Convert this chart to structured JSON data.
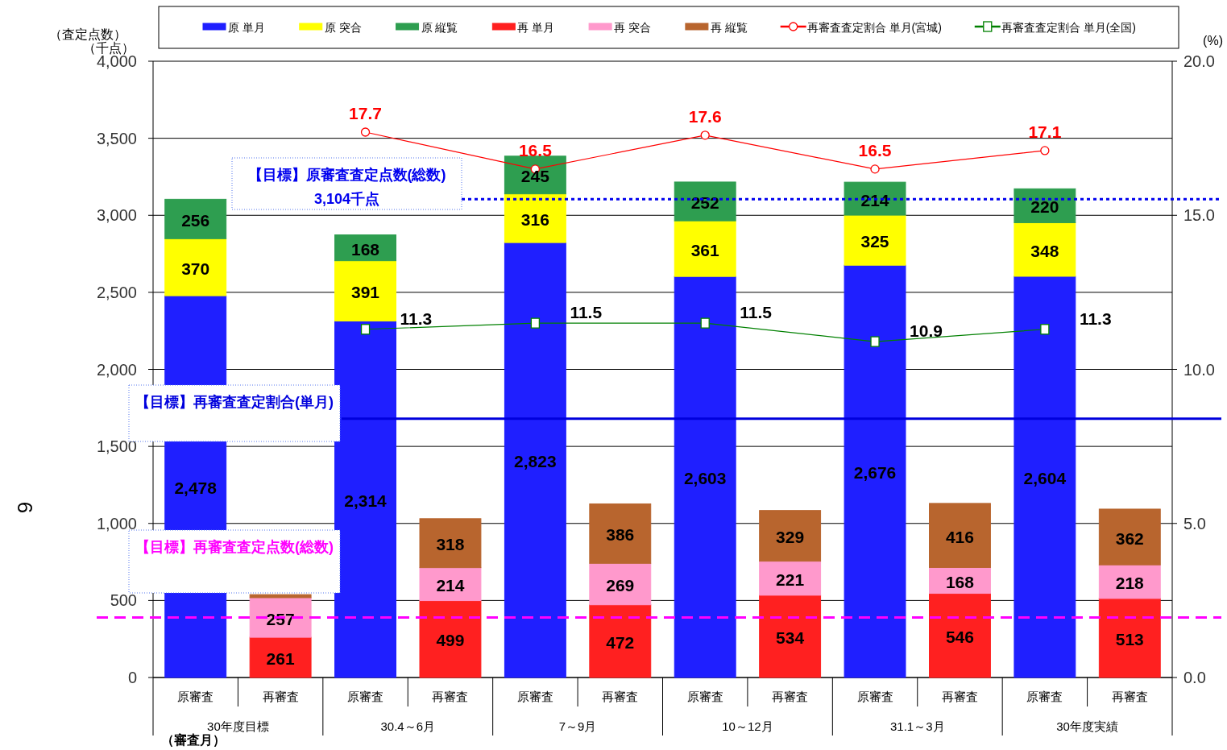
{
  "chart_data": {
    "type": "bar",
    "stacked": true,
    "categories": [
      "原審査",
      "再審査",
      "原審査",
      "再審査",
      "原審査",
      "再審査",
      "原審査",
      "再審査",
      "原審査",
      "再審査",
      "原審査",
      "再審査"
    ],
    "ylabel": "（査定点数）（千点）",
    "y2label": "(%)",
    "xlabel": "（審査月）",
    "ylim": [
      0,
      4000
    ],
    "yticks": [
      {
        "value": 0,
        "label": "0"
      },
      {
        "value": 500,
        "label": "500"
      },
      {
        "value": 1000,
        "label": "1,000"
      },
      {
        "value": 1500,
        "label": "1,500"
      },
      {
        "value": 2000,
        "label": "2,000"
      },
      {
        "value": 2500,
        "label": "2,500"
      },
      {
        "value": 3000,
        "label": "3,000"
      },
      {
        "value": 3500,
        "label": "3,500"
      },
      {
        "value": 4000,
        "label": "4,000"
      }
    ],
    "y2lim": [
      0,
      20
    ],
    "y2ticks": [
      {
        "value": 0,
        "label": "0.0"
      },
      {
        "value": 5,
        "label": "5.0"
      },
      {
        "value": 10,
        "label": "10.0"
      },
      {
        "value": 15,
        "label": "15.0"
      },
      {
        "value": 20,
        "label": "20.0"
      }
    ],
    "grid": "y",
    "legend": "top",
    "series": [
      {
        "name": "原 単月",
        "color": "#1f1fff",
        "values": [
          2478,
          null,
          2314,
          null,
          2823,
          null,
          2603,
          null,
          2676,
          null,
          2604,
          null
        ],
        "value_labels": [
          "2,478",
          null,
          "2,314",
          null,
          "2,823",
          null,
          "2,603",
          null,
          "2,676",
          null,
          "2,604",
          null
        ]
      },
      {
        "name": "原 突合",
        "color": "#ffff00",
        "values": [
          370,
          null,
          391,
          null,
          316,
          null,
          361,
          null,
          325,
          null,
          348,
          null
        ],
        "value_labels": [
          "370",
          null,
          "391",
          null,
          "316",
          null,
          "361",
          null,
          "325",
          null,
          "348",
          null
        ]
      },
      {
        "name": "原 縦覧",
        "color": "#2e9e50",
        "values": [
          256,
          null,
          168,
          null,
          245,
          null,
          252,
          null,
          214,
          null,
          220,
          null
        ],
        "value_labels": [
          "256",
          null,
          "168",
          null,
          "245",
          null,
          "252",
          null,
          "214",
          null,
          "220",
          null
        ]
      },
      {
        "name": "再 単月",
        "color": "#ff2020",
        "values": [
          null,
          261,
          null,
          499,
          null,
          472,
          null,
          534,
          null,
          546,
          null,
          513
        ],
        "value_labels": [
          null,
          "261",
          null,
          "499",
          null,
          "472",
          null,
          "534",
          null,
          "546",
          null,
          "513"
        ]
      },
      {
        "name": "再 突合",
        "color": "#ff99cc",
        "values": [
          null,
          257,
          null,
          214,
          null,
          269,
          null,
          221,
          null,
          168,
          null,
          218
        ],
        "value_labels": [
          null,
          "257",
          null,
          "214",
          null,
          "269",
          null,
          "221",
          null,
          "168",
          null,
          "218"
        ]
      },
      {
        "name": "再 縦覧",
        "color": "#b8652e",
        "values": [
          null,
          20,
          null,
          318,
          null,
          386,
          null,
          329,
          null,
          416,
          null,
          362
        ],
        "value_labels": [
          null,
          null,
          null,
          "318",
          null,
          "386",
          null,
          "329",
          null,
          "416",
          null,
          "362"
        ]
      },
      {
        "name": "再審査査定割合 単月(宮城)",
        "type": "line",
        "axis": "y2",
        "marker": "circle",
        "color": "#ff0000",
        "values": [
          null,
          null,
          17.7,
          null,
          16.5,
          null,
          17.6,
          null,
          16.5,
          null,
          17.1,
          null
        ],
        "value_labels": [
          null,
          null,
          "17.7",
          null,
          "16.5",
          null,
          "17.6",
          null,
          "16.5",
          null,
          "17.1",
          null
        ]
      },
      {
        "name": "再審査査定割合 単月(全国)",
        "type": "line",
        "axis": "y2",
        "marker": "square",
        "color": "#008000",
        "values": [
          null,
          null,
          11.3,
          null,
          11.5,
          null,
          11.5,
          null,
          10.9,
          null,
          11.3,
          null
        ],
        "value_labels": [
          null,
          null,
          "11.3",
          null,
          "11.5",
          null,
          "11.5",
          null,
          "10.9",
          null,
          "11.3",
          null
        ]
      }
    ],
    "ref_lines": [
      {
        "axis": "y",
        "value": 3104,
        "label": "【目標】原審査査定点数(総数)\n3,104千点",
        "color": "#0000ee",
        "line_style": "dotted"
      },
      {
        "axis": "y2",
        "value": 8.4,
        "label": "【目標】再審査査定割合(単月)",
        "color": "#0000dd",
        "line_style": "solid"
      },
      {
        "axis": "y",
        "value": 390,
        "label": "【目標】再審査査定点数(総数)",
        "color": "#ff00ff",
        "line_style": "dashed"
      }
    ],
    "annotations": [
      "30年度目標",
      "30.4～6月",
      "7～9月",
      "10～12月",
      "31.1～3月",
      "30年度実績",
      "6"
    ]
  }
}
